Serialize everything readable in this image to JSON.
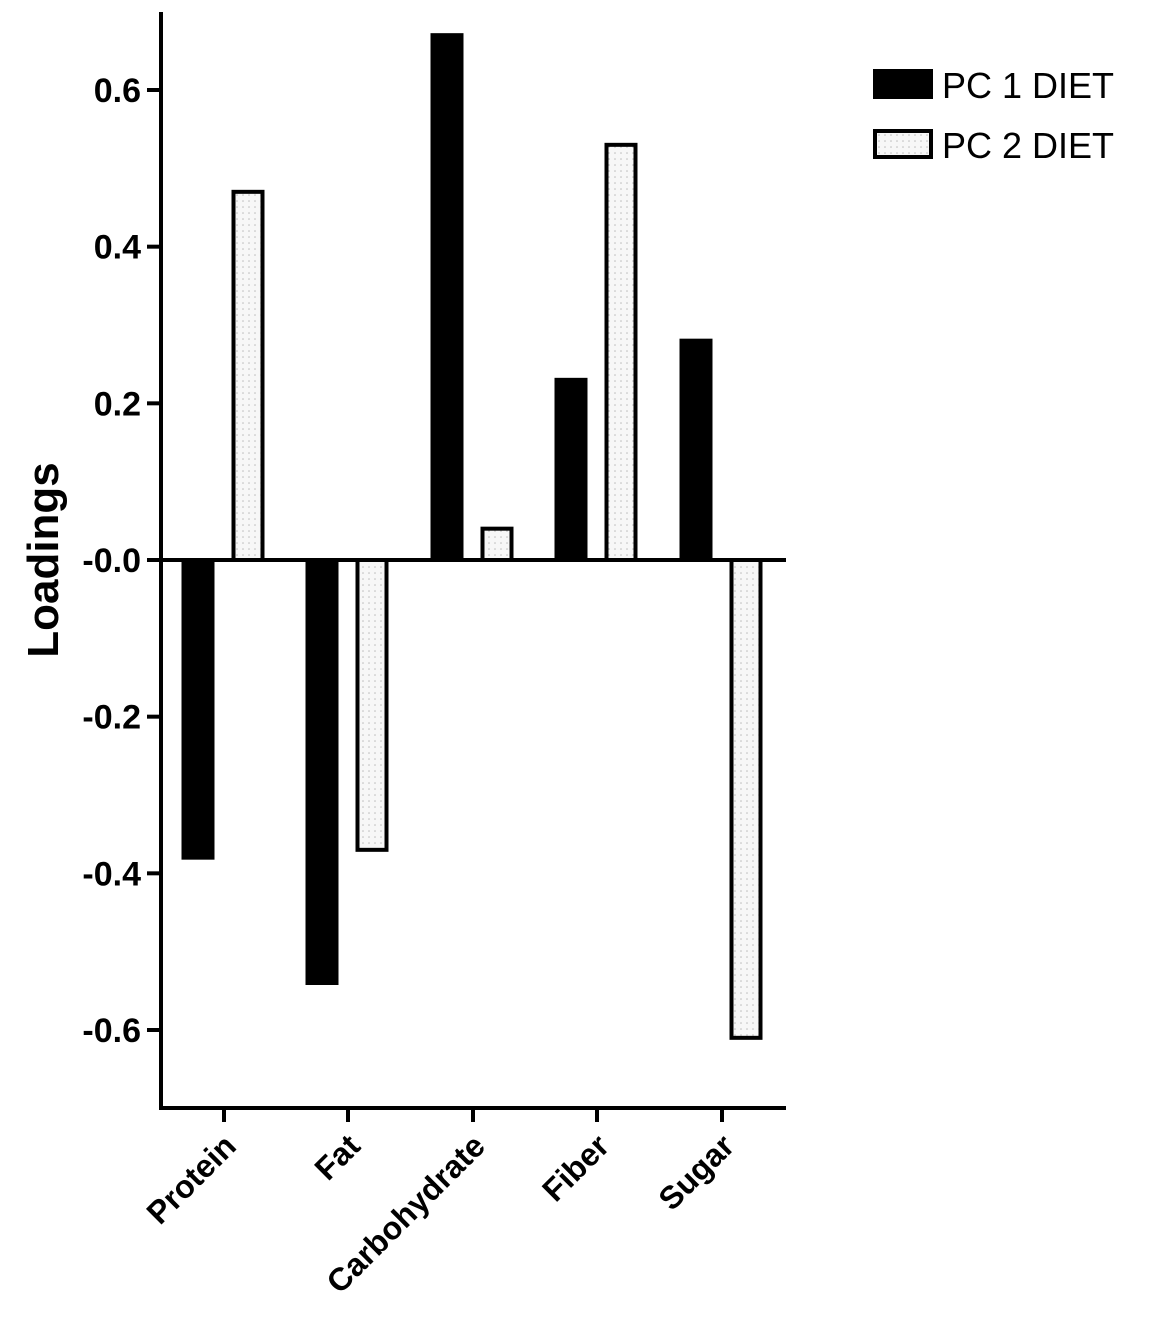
{
  "chart_data": {
    "type": "bar",
    "title": "",
    "xlabel": "",
    "ylabel": "Loadings",
    "categories": [
      "Protein",
      "Fat",
      "Carbohydrate",
      "Fiber",
      "Sugar"
    ],
    "series": [
      {
        "name": "PC 1 DIET",
        "color": "#000000",
        "fill": "solid",
        "values": [
          -0.38,
          -0.54,
          0.67,
          0.23,
          0.28
        ]
      },
      {
        "name": "PC 2 DIET",
        "color": "#f4f4f4",
        "fill": "dotted",
        "values": [
          0.47,
          -0.37,
          0.04,
          0.53,
          -0.61
        ]
      }
    ],
    "ylim": [
      -0.7,
      0.7
    ],
    "yticks": [
      0.6,
      0.4,
      0.2,
      0.0,
      -0.2,
      -0.4,
      -0.6
    ],
    "ytick_labels": [
      "0.6",
      "0.4",
      "0.2",
      "-0.0",
      "-0.2",
      "-0.4",
      "-0.6"
    ],
    "legend_position": "top-right",
    "grid": false
  }
}
